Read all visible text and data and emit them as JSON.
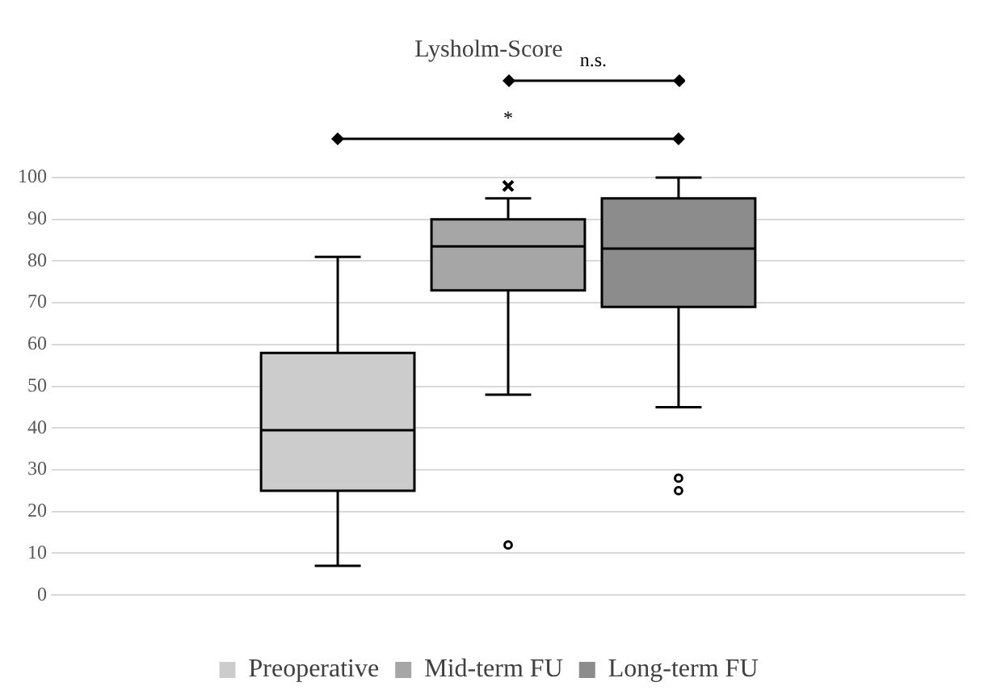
{
  "chart_data": {
    "type": "box",
    "title": "Lysholm-Score",
    "categories": [
      null
    ],
    "series": [
      {
        "name": "Preoperative",
        "color": "#cccccc",
        "boxes": [
          {
            "low": 7,
            "q1": 25,
            "median": 39.5,
            "q3": 58,
            "high": 81
          }
        ]
      },
      {
        "name": "Mid-term FU",
        "color": "#a6a6a6",
        "boxes": [
          {
            "low": 48,
            "q1": 73,
            "median": 83.5,
            "q3": 90,
            "high": 95,
            "mean": 98,
            "outliers": [
              12
            ]
          }
        ]
      },
      {
        "name": "Long-term FU",
        "color": "#8c8c8c",
        "boxes": [
          {
            "low": 45,
            "q1": 69,
            "median": 83,
            "q3": 95,
            "high": 100,
            "outliers": [
              28,
              25
            ]
          }
        ]
      }
    ],
    "ylim": [
      0,
      100
    ],
    "yticks": [
      0,
      10,
      20,
      30,
      40,
      50,
      60,
      70,
      80,
      90,
      100
    ],
    "grid": "y",
    "legend": "bottom",
    "annotations": [
      "n.s.",
      "*"
    ]
  }
}
